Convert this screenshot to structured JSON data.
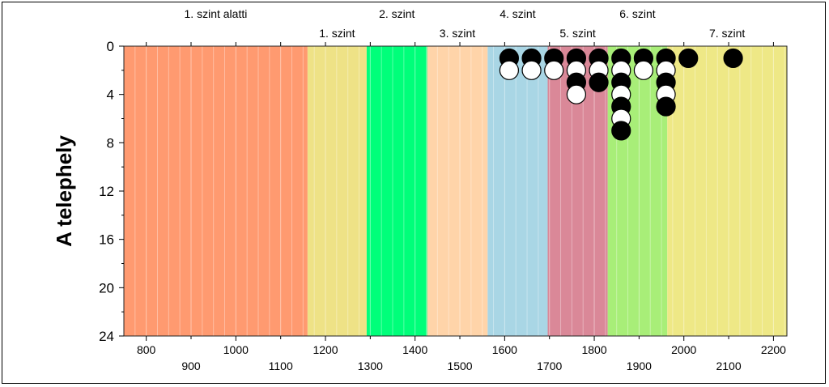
{
  "chart_data": {
    "type": "scatter",
    "ylabel": "A telephely",
    "ylim": [
      24,
      0
    ],
    "y_ticks": [
      "0",
      "4",
      "8",
      "12",
      "16",
      "20",
      "24"
    ],
    "x_ticks_top_row": [
      "800",
      "1000",
      "1200",
      "1400",
      "1600",
      "1800",
      "2000",
      "2200"
    ],
    "x_ticks_bottom_row": [
      "900",
      "1100",
      "1300",
      "1500",
      "1700",
      "1900",
      "2100"
    ],
    "band_labels": [
      {
        "label": "1. szint alatti",
        "row": "upper"
      },
      {
        "label": "1. szint",
        "row": "lower"
      },
      {
        "label": "2. szint",
        "row": "upper"
      },
      {
        "label": "3. szint",
        "row": "lower"
      },
      {
        "label": "4. szint",
        "row": "upper"
      },
      {
        "label": "5. szint",
        "row": "lower"
      },
      {
        "label": "6. szint",
        "row": "upper"
      },
      {
        "label": "7. szint",
        "row": "lower"
      }
    ],
    "bands": [
      {
        "name": "1. szint alatti",
        "from": 750,
        "to": 1160,
        "color": "#FF9A70"
      },
      {
        "name": "1. szint",
        "from": 1160,
        "to": 1292,
        "color": "#EEE286"
      },
      {
        "name": "2. szint",
        "from": 1292,
        "to": 1427,
        "color": "#00FF7A"
      },
      {
        "name": "3. szint",
        "from": 1427,
        "to": 1562,
        "color": "#FFD4A9"
      },
      {
        "name": "4. szint",
        "from": 1562,
        "to": 1696,
        "color": "#A9D6E5"
      },
      {
        "name": "5. szint",
        "from": 1696,
        "to": 1830,
        "color": "#DA8898"
      },
      {
        "name": "6. szint",
        "from": 1830,
        "to": 1963,
        "color": "#A8EE78"
      },
      {
        "name": "7. szint",
        "from": 1963,
        "to": 2230,
        "color": "#EEE886"
      }
    ],
    "points": [
      {
        "x": 1610,
        "y": 1,
        "fill": "black"
      },
      {
        "x": 1610,
        "y": 2,
        "fill": "white"
      },
      {
        "x": 1660,
        "y": 1,
        "fill": "black"
      },
      {
        "x": 1660,
        "y": 2,
        "fill": "white"
      },
      {
        "x": 1710,
        "y": 1,
        "fill": "black"
      },
      {
        "x": 1710,
        "y": 2,
        "fill": "white"
      },
      {
        "x": 1760,
        "y": 1,
        "fill": "black"
      },
      {
        "x": 1760,
        "y": 2,
        "fill": "white"
      },
      {
        "x": 1760,
        "y": 3,
        "fill": "black"
      },
      {
        "x": 1760,
        "y": 4,
        "fill": "white"
      },
      {
        "x": 1810,
        "y": 1,
        "fill": "black"
      },
      {
        "x": 1810,
        "y": 2,
        "fill": "white"
      },
      {
        "x": 1810,
        "y": 3,
        "fill": "black"
      },
      {
        "x": 1860,
        "y": 1,
        "fill": "black"
      },
      {
        "x": 1860,
        "y": 2,
        "fill": "white"
      },
      {
        "x": 1860,
        "y": 3,
        "fill": "black"
      },
      {
        "x": 1860,
        "y": 4,
        "fill": "white"
      },
      {
        "x": 1860,
        "y": 5,
        "fill": "black"
      },
      {
        "x": 1860,
        "y": 6,
        "fill": "white"
      },
      {
        "x": 1860,
        "y": 7,
        "fill": "black"
      },
      {
        "x": 1910,
        "y": 1,
        "fill": "black"
      },
      {
        "x": 1910,
        "y": 2,
        "fill": "white"
      },
      {
        "x": 1960,
        "y": 1,
        "fill": "black"
      },
      {
        "x": 1960,
        "y": 2,
        "fill": "white"
      },
      {
        "x": 1960,
        "y": 3,
        "fill": "black"
      },
      {
        "x": 1960,
        "y": 4,
        "fill": "white"
      },
      {
        "x": 1960,
        "y": 5,
        "fill": "black"
      },
      {
        "x": 2010,
        "y": 1,
        "fill": "black"
      },
      {
        "x": 2110,
        "y": 1,
        "fill": "black"
      }
    ],
    "grid": "vertical-minor"
  }
}
